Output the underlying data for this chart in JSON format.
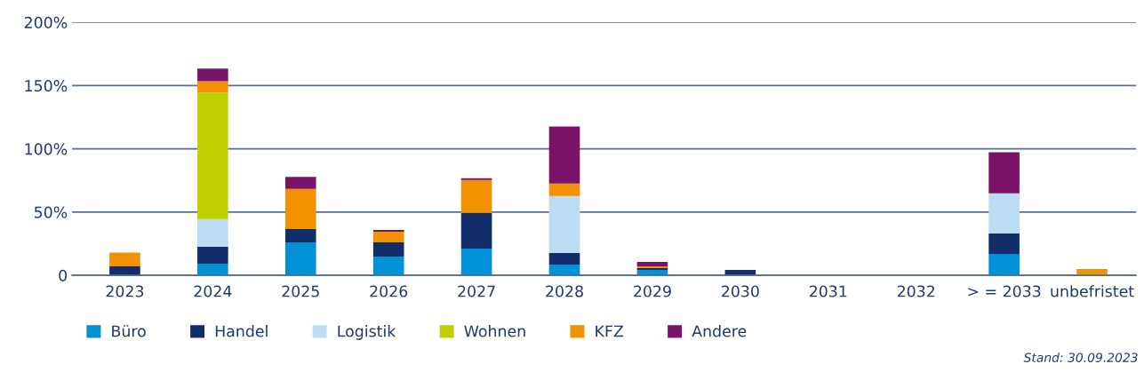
{
  "chart_data": {
    "type": "bar",
    "stacked": true,
    "categories": [
      "2023",
      "2024",
      "2025",
      "2026",
      "2027",
      "2028",
      "2029",
      "2030",
      "2031",
      "2032",
      "> = 2033",
      "unbefristet"
    ],
    "series": [
      {
        "name": "Büro",
        "color": "#0091d6",
        "values": [
          0,
          9.2,
          26,
          14.8,
          21.1,
          8.5,
          4.2,
          0,
          0,
          0,
          16.9,
          0
        ]
      },
      {
        "name": "Handel",
        "color": "#112e6a",
        "values": [
          7,
          13.3,
          10.6,
          11.2,
          28.2,
          9.1,
          1.4,
          4.2,
          0,
          0,
          16.2,
          0
        ]
      },
      {
        "name": "Logistik",
        "color": "#bcdcf4",
        "values": [
          0,
          21.9,
          0,
          0,
          0,
          45.1,
          0,
          0,
          0,
          0,
          31.7,
          0
        ]
      },
      {
        "name": "Wohnen",
        "color": "#bfcf00",
        "values": [
          0,
          100,
          0,
          0,
          0,
          0,
          0,
          0,
          0,
          0,
          0,
          0
        ]
      },
      {
        "name": "KFZ",
        "color": "#f39200",
        "values": [
          11,
          9.1,
          31.7,
          8.5,
          26.1,
          9.8,
          1.4,
          0,
          0,
          0,
          0,
          4.9
        ]
      },
      {
        "name": "Andere",
        "color": "#7b1468",
        "values": [
          0,
          9.9,
          9.4,
          1.4,
          1.4,
          45.1,
          3.6,
          0,
          0,
          0,
          32.4,
          0
        ]
      }
    ],
    "ylim": [
      0,
      200
    ],
    "yticks": [
      {
        "value": 0,
        "label": "0"
      },
      {
        "value": 50,
        "label": "50%"
      },
      {
        "value": 100,
        "label": "100%"
      },
      {
        "value": 150,
        "label": "150%"
      },
      {
        "value": 200,
        "label": "200%"
      }
    ],
    "grid": "y",
    "legend": "bottom left",
    "annotations": [
      "Stand: 30.09.2023"
    ]
  }
}
